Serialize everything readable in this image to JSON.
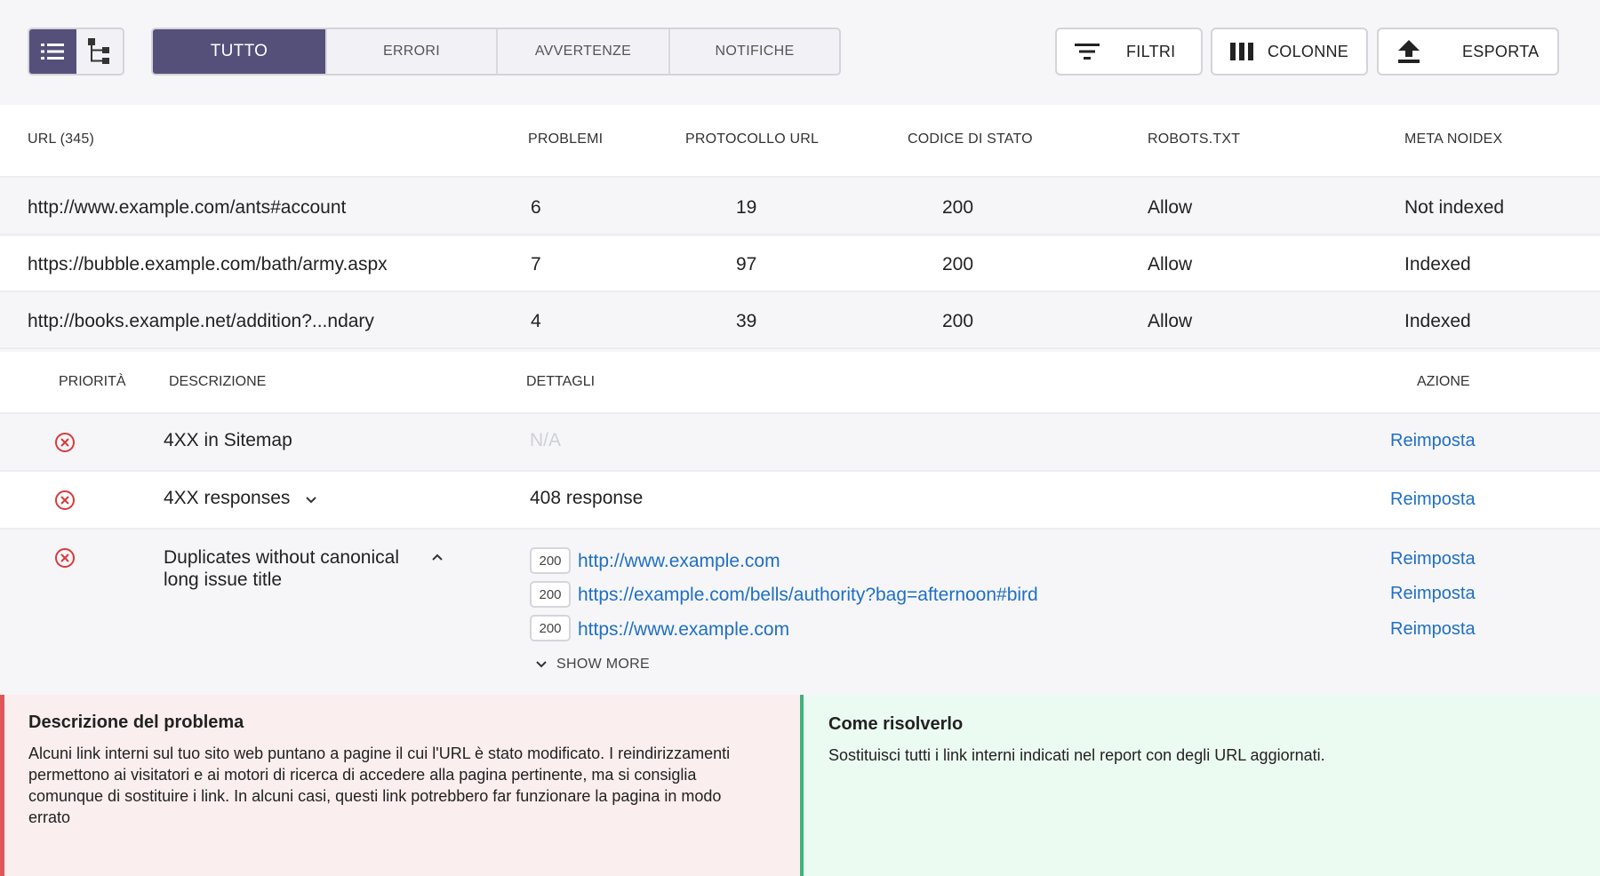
{
  "toolbar": {
    "view_list_icon": "list-icon",
    "view_tree_icon": "tree-icon",
    "tabs": [
      "TUTTO",
      "ERRORI",
      "AVVERTENZE",
      "NOTIFICHE"
    ],
    "active_tab": "TUTTO",
    "filters_label": "FILTRI",
    "columns_label": "COLONNE",
    "export_label": "ESPORTA",
    "accent_color": "#55507a"
  },
  "table": {
    "headers": [
      "URL (345)",
      "PROBLEMI",
      "PROTOCOLLO URL",
      "CODICE DI STATO",
      "ROBOTS.TXT",
      "META NOIDEX"
    ],
    "rows": [
      {
        "url": "http://www.example.com/ants#account",
        "problems": "6",
        "protocol": "19",
        "status": "200",
        "robots": "Allow",
        "meta": "Not indexed"
      },
      {
        "url": "https://bubble.example.com/bath/army.aspx",
        "problems": "7",
        "protocol": "97",
        "status": "200",
        "robots": "Allow",
        "meta": "Indexed"
      },
      {
        "url": "http://books.example.net/addition?...ndary",
        "problems": "4",
        "protocol": "39",
        "status": "200",
        "robots": "Allow",
        "meta": "Indexed"
      }
    ]
  },
  "issues": {
    "headers": [
      "PRIORITÀ",
      "DESCRIZIONE",
      "DETTAGLI",
      "AZIONE"
    ],
    "rows": [
      {
        "priority": "error",
        "description": "4XX in Sitemap",
        "details": "N/A",
        "action": "Reimposta"
      },
      {
        "priority": "error",
        "description": "4XX responses",
        "details": "408 response",
        "action": "Reimposta"
      },
      {
        "priority": "error",
        "description_line1": "Duplicates without canonical",
        "description_line2": "long issue title",
        "links": [
          {
            "code": "200",
            "url": "http://www.example.com",
            "action": "Reimposta"
          },
          {
            "code": "200",
            "url": "https://example.com/bells/authority?bag=afternoon#bird",
            "action": "Reimposta"
          },
          {
            "code": "200",
            "url": "https://www.example.com",
            "action": "Reimposta"
          }
        ],
        "show_more": "SHOW MORE"
      }
    ],
    "error_color": "#d83a3a"
  },
  "panels": {
    "problem_title": "Descrizione del problema",
    "problem_text": "Alcuni link interni sul tuo sito web puntano a pagine il cui l'URL è stato modificato. I reindirizzamenti permettono ai visitatori e ai motori di ricerca di accedere alla pagina pertinente, ma si consiglia comunque di sostituire i link. In alcuni casi, questi link potrebbero far funzionare la pagina in modo errato",
    "solution_title": "Come risolverlo",
    "solution_text": "Sostituisci tutti i link interni indicati nel report con degli URL aggiornati."
  }
}
